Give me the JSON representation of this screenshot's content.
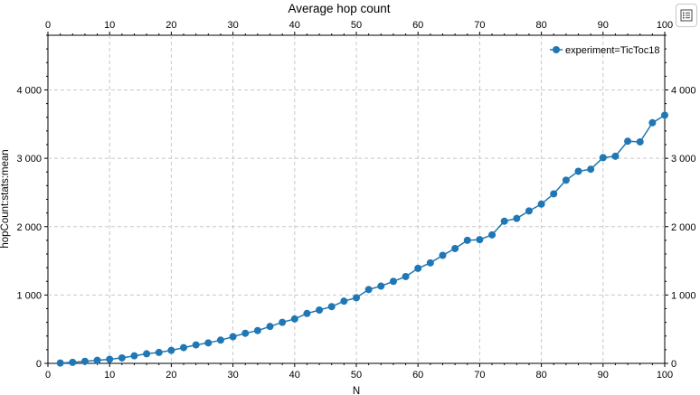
{
  "chart_data": {
    "type": "line",
    "title": "Average hop count",
    "xlabel": "N",
    "ylabel": "hopCount:stats:mean",
    "xlim": [
      0,
      100
    ],
    "ylim": [
      0,
      4800
    ],
    "x_ticks": [
      0,
      10,
      20,
      30,
      40,
      50,
      60,
      70,
      80,
      90,
      100
    ],
    "y_ticks": [
      0,
      1000,
      2000,
      3000,
      4000
    ],
    "y_tick_labels": [
      "0",
      "1 000",
      "2 000",
      "3 000",
      "4 000"
    ],
    "grid": true,
    "legend_position": "top-right",
    "color": "#1f77b4",
    "series": [
      {
        "name": "experiment=TicToc18",
        "x": [
          2,
          4,
          6,
          8,
          10,
          12,
          14,
          16,
          18,
          20,
          22,
          24,
          26,
          28,
          30,
          32,
          34,
          36,
          38,
          40,
          42,
          44,
          46,
          48,
          50,
          52,
          54,
          56,
          58,
          60,
          62,
          64,
          66,
          68,
          70,
          72,
          74,
          76,
          78,
          80,
          82,
          84,
          86,
          88,
          90,
          92,
          94,
          96,
          98,
          100
        ],
        "y": [
          5,
          15,
          30,
          45,
          60,
          80,
          110,
          140,
          160,
          190,
          230,
          270,
          300,
          340,
          390,
          440,
          480,
          540,
          600,
          650,
          730,
          780,
          830,
          910,
          960,
          1080,
          1130,
          1200,
          1270,
          1390,
          1470,
          1580,
          1680,
          1800,
          1810,
          1880,
          2080,
          2120,
          2230,
          2330,
          2480,
          2680,
          2810,
          2840,
          3010,
          3030,
          3250,
          3240,
          3520,
          3630
        ]
      }
    ]
  }
}
